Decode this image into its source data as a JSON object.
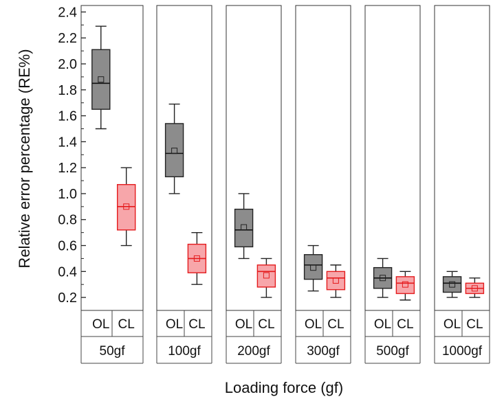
{
  "chart_data": {
    "type": "box",
    "xlabel": "Loading force (gf)",
    "ylabel": "Relative error percentage (RE%)",
    "ylim": [
      0.1,
      2.45
    ],
    "yticks": [
      "2.4",
      "2.2",
      "2.0",
      "1.8",
      "1.6",
      "1.4",
      "1.2",
      "1.0",
      "0.8",
      "0.6",
      "0.4",
      "0.2"
    ],
    "grid": false,
    "legend": "none",
    "groups": [
      "50gf",
      "100gf",
      "200gf",
      "300gf",
      "500gf",
      "1000gf"
    ],
    "subcategories": [
      "OL",
      "CL"
    ],
    "colors": {
      "OL": "#8c8c8c",
      "CL": "#f7a6aa",
      "CL_stroke": "#e41a1c",
      "OL_stroke": "#222222"
    },
    "boxes": [
      {
        "group": "50gf",
        "sub": "OL",
        "min": 1.5,
        "q1": 1.65,
        "median": 1.85,
        "q3": 2.11,
        "max": 2.29,
        "mean": 1.88
      },
      {
        "group": "50gf",
        "sub": "CL",
        "min": 0.6,
        "q1": 0.72,
        "median": 0.9,
        "q3": 1.07,
        "max": 1.2,
        "mean": 0.9
      },
      {
        "group": "100gf",
        "sub": "OL",
        "min": 1.0,
        "q1": 1.13,
        "median": 1.31,
        "q3": 1.54,
        "max": 1.69,
        "mean": 1.33
      },
      {
        "group": "100gf",
        "sub": "CL",
        "min": 0.3,
        "q1": 0.39,
        "median": 0.5,
        "q3": 0.61,
        "max": 0.7,
        "mean": 0.5
      },
      {
        "group": "200gf",
        "sub": "OL",
        "min": 0.5,
        "q1": 0.59,
        "median": 0.72,
        "q3": 0.88,
        "max": 1.0,
        "mean": 0.74
      },
      {
        "group": "200gf",
        "sub": "CL",
        "min": 0.2,
        "q1": 0.28,
        "median": 0.4,
        "q3": 0.45,
        "max": 0.5,
        "mean": 0.37
      },
      {
        "group": "300gf",
        "sub": "OL",
        "min": 0.25,
        "q1": 0.34,
        "median": 0.45,
        "q3": 0.53,
        "max": 0.6,
        "mean": 0.43
      },
      {
        "group": "300gf",
        "sub": "CL",
        "min": 0.2,
        "q1": 0.26,
        "median": 0.35,
        "q3": 0.4,
        "max": 0.45,
        "mean": 0.33
      },
      {
        "group": "500gf",
        "sub": "OL",
        "min": 0.2,
        "q1": 0.27,
        "median": 0.35,
        "q3": 0.43,
        "max": 0.5,
        "mean": 0.35
      },
      {
        "group": "500gf",
        "sub": "CL",
        "min": 0.18,
        "q1": 0.23,
        "median": 0.31,
        "q3": 0.36,
        "max": 0.4,
        "mean": 0.3
      },
      {
        "group": "1000gf",
        "sub": "OL",
        "min": 0.2,
        "q1": 0.24,
        "median": 0.31,
        "q3": 0.36,
        "max": 0.4,
        "mean": 0.3
      },
      {
        "group": "1000gf",
        "sub": "CL",
        "min": 0.2,
        "q1": 0.23,
        "median": 0.27,
        "q3": 0.31,
        "max": 0.35,
        "mean": 0.27
      }
    ]
  }
}
